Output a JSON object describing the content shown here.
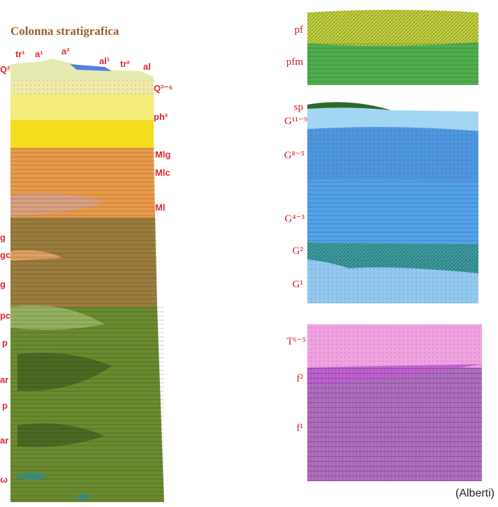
{
  "title": "Colonna stratigrafica",
  "left_column": {
    "top_labels": [
      "tr¹",
      "a¹",
      "a²",
      "al¹",
      "tr²",
      "al"
    ],
    "left_labels": [
      "Q²",
      "g",
      "gc",
      "g",
      "pc",
      "p",
      "ar",
      "p",
      "ar",
      "ω"
    ],
    "right_labels": [
      "Q³⁻⁵",
      "ph²",
      "Mlg",
      "Mlc",
      "Ml"
    ]
  },
  "right_column": {
    "labels": [
      "pf",
      "pfm",
      "sp",
      "G¹¹⁻⁹",
      "G⁸⁻⁵",
      "G⁴⁻³",
      "G²",
      "G¹",
      "T⁶⁻⁵",
      "f²",
      "f¹"
    ]
  },
  "credit": "(Alberti)"
}
